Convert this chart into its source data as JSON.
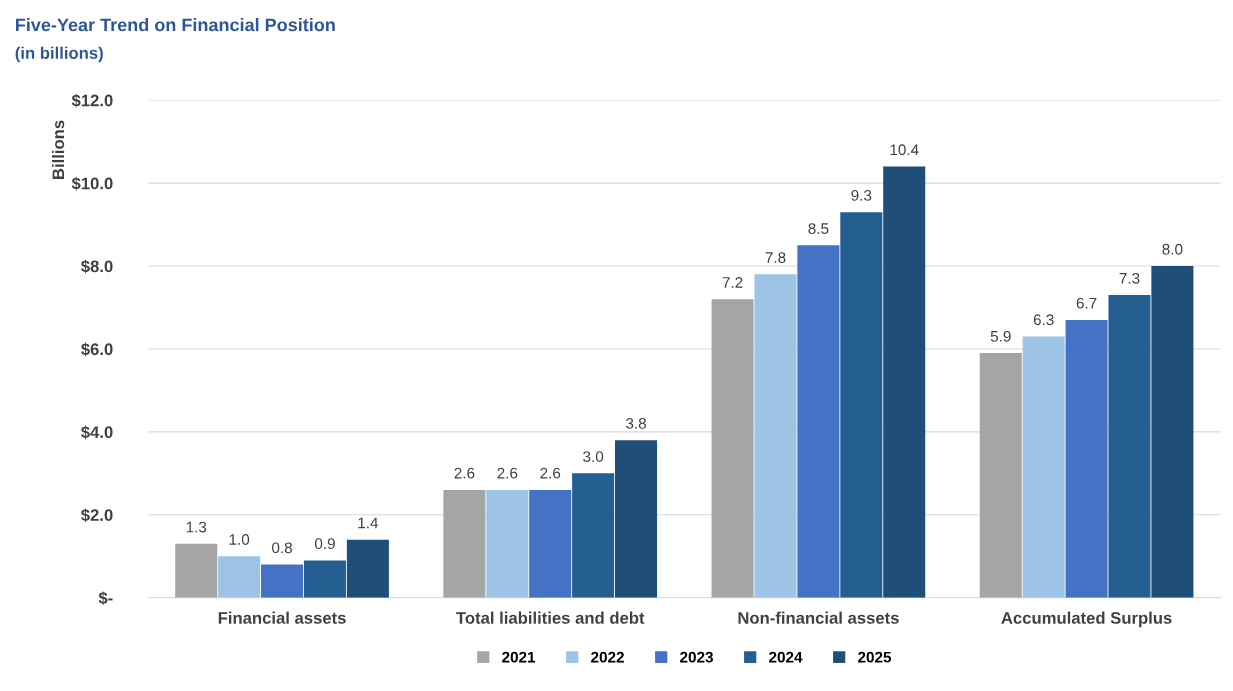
{
  "chart_data": {
    "type": "bar",
    "title": "Five-Year Trend on Financial Position",
    "subtitle": "(in billions)",
    "ylabel": "Billions",
    "categories": [
      "Financial assets",
      "Total liabilities and debt",
      "Non-financial assets",
      "Accumulated Surplus"
    ],
    "series": [
      {
        "name": "2021",
        "color": "#a5a5a5",
        "values": [
          1.3,
          2.6,
          7.2,
          5.9
        ],
        "value_labels": [
          "1.3",
          "2.6",
          "7.2",
          "5.9"
        ]
      },
      {
        "name": "2022",
        "color": "#9dc3e6",
        "values": [
          1.0,
          2.6,
          7.8,
          6.3
        ],
        "value_labels": [
          "1.0",
          "2.6",
          "7.8",
          "6.3"
        ]
      },
      {
        "name": "2023",
        "color": "#4472c4",
        "values": [
          0.8,
          2.6,
          8.5,
          6.7
        ],
        "value_labels": [
          "0.8",
          "2.6",
          "8.5",
          "6.7"
        ]
      },
      {
        "name": "2024",
        "color": "#255e91",
        "values": [
          0.9,
          3.0,
          9.3,
          7.3
        ],
        "value_labels": [
          "0.9",
          "3.0",
          "9.3",
          "7.3"
        ]
      },
      {
        "name": "2025",
        "color": "#1f4e79",
        "values": [
          1.4,
          3.8,
          10.4,
          8.0
        ],
        "value_labels": [
          "1.4",
          "3.8",
          "10.4",
          "8.0"
        ]
      }
    ],
    "ylim": [
      0,
      12
    ],
    "yticks": [
      {
        "value": 0,
        "label": "$-"
      },
      {
        "value": 2,
        "label": "$2.0"
      },
      {
        "value": 4,
        "label": "$4.0"
      },
      {
        "value": 6,
        "label": "$6.0"
      },
      {
        "value": 8,
        "label": "$8.0"
      },
      {
        "value": 10,
        "label": "$10.0"
      },
      {
        "value": 12,
        "label": "$12.0"
      }
    ],
    "grid": "y",
    "legend": "bottom"
  }
}
